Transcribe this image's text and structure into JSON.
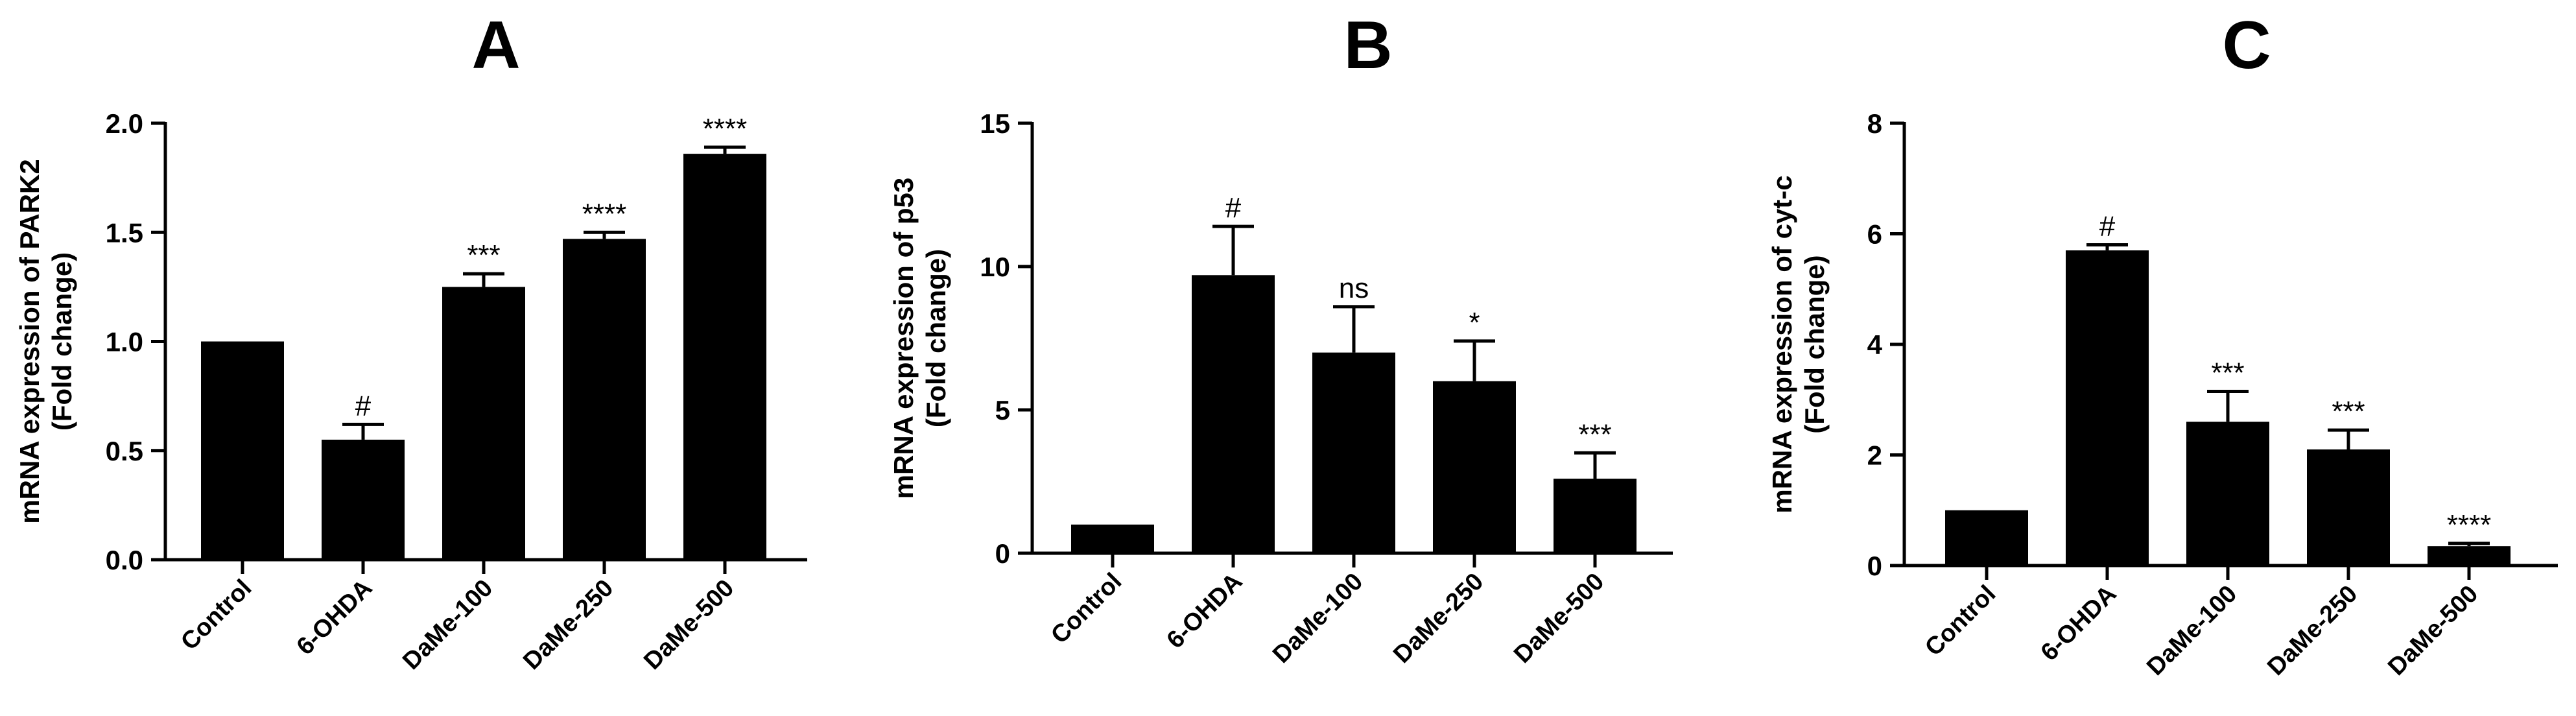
{
  "colors": {
    "bar": "#000000",
    "axis": "#000000",
    "background": "#ffffff"
  },
  "chart_data": [
    {
      "type": "bar",
      "title": "A",
      "ylabel_lines": [
        "mRNA expression of PARK2",
        "(Fold change)"
      ],
      "categories": [
        "Control",
        "6-OHDA",
        "DaMe-100",
        "DaMe-250",
        "DaMe-500"
      ],
      "values": [
        1.0,
        0.55,
        1.25,
        1.47,
        1.86
      ],
      "errors": [
        0.0,
        0.07,
        0.06,
        0.03,
        0.03
      ],
      "annotations": [
        "",
        "#",
        "***",
        "****",
        "****"
      ],
      "ylim": [
        0,
        2.0
      ],
      "yticks": [
        "0.0",
        "0.5",
        "1.0",
        "1.5",
        "2.0"
      ],
      "ytick_values": [
        0,
        0.5,
        1.0,
        1.5,
        2.0
      ],
      "grid": false
    },
    {
      "type": "bar",
      "title": "B",
      "ylabel_lines": [
        "mRNA expression of p53",
        "(Fold change)"
      ],
      "categories": [
        "Control",
        "6-OHDA",
        "DaMe-100",
        "DaMe-250",
        "DaMe-500"
      ],
      "values": [
        1.0,
        9.7,
        7.0,
        6.0,
        2.6
      ],
      "errors": [
        0.0,
        1.7,
        1.6,
        1.4,
        0.9
      ],
      "annotations": [
        "",
        "#",
        "ns",
        "*",
        "***"
      ],
      "ylim": [
        0,
        15
      ],
      "yticks": [
        "0",
        "5",
        "10",
        "15"
      ],
      "ytick_values": [
        0,
        5,
        10,
        15
      ],
      "grid": false
    },
    {
      "type": "bar",
      "title": "C",
      "ylabel_lines": [
        "mRNA expression of cyt-c",
        "(Fold change)"
      ],
      "categories": [
        "Control",
        "6-OHDA",
        "DaMe-100",
        "DaMe-250",
        "DaMe-500"
      ],
      "values": [
        1.0,
        5.7,
        2.6,
        2.1,
        0.35
      ],
      "errors": [
        0.0,
        0.1,
        0.55,
        0.35,
        0.05
      ],
      "annotations": [
        "",
        "#",
        "***",
        "***",
        "****"
      ],
      "ylim": [
        0,
        8
      ],
      "yticks": [
        "0",
        "2",
        "4",
        "6",
        "8"
      ],
      "ytick_values": [
        0,
        2,
        4,
        6,
        8
      ],
      "grid": false
    }
  ]
}
